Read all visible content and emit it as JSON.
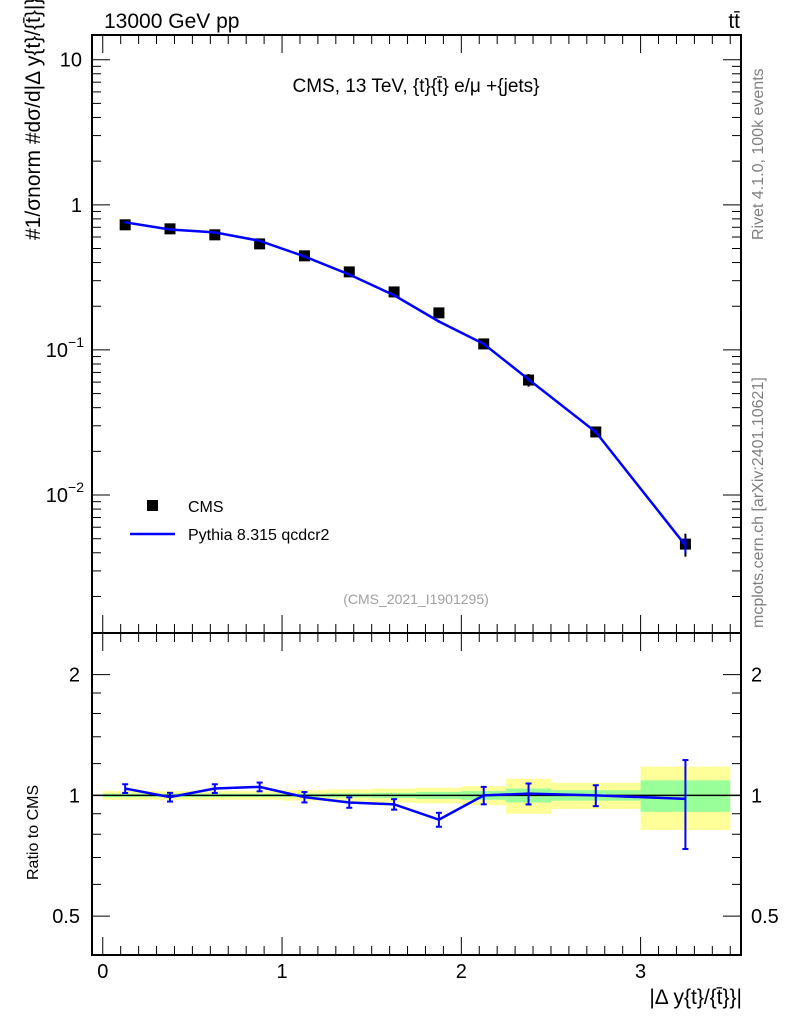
{
  "header": {
    "left": "13000 GeV pp",
    "right": "tt̄"
  },
  "side_labels": {
    "rivet": "Rivet 4.1.0,  100k events",
    "site": "mcplots.cern.ch [arXiv:2401.10621]"
  },
  "chart_data": [
    {
      "type": "scatter",
      "title": "CMS, 13 TeV, {t}{t̄} e/μ +{jets}",
      "watermark": "(CMS_2021_I1901295)",
      "ylabel": "#1/σnorm #dσ/d|Δ y{t}/{t̄}|}",
      "yscale": "log",
      "ylim": [
        0.00112,
        14.8
      ],
      "xlim": [
        -0.06,
        3.56
      ],
      "ytick_labels": [
        {
          "v": 10,
          "base": "10",
          "exp": ""
        },
        {
          "v": 1,
          "base": "1",
          "exp": ""
        },
        {
          "v": 0.1,
          "base": "10",
          "exp": "−1"
        },
        {
          "v": 0.01,
          "base": "10",
          "exp": "−2"
        }
      ],
      "legend": {
        "placement": "lower-left",
        "entries": [
          "CMS",
          "Pythia 8.315 qcdcr2"
        ]
      },
      "bins": [
        [
          0,
          0.25
        ],
        [
          0.25,
          0.5
        ],
        [
          0.5,
          0.75
        ],
        [
          0.75,
          1.0
        ],
        [
          1.0,
          1.25
        ],
        [
          1.25,
          1.5
        ],
        [
          1.5,
          1.75
        ],
        [
          1.75,
          2.0
        ],
        [
          2.0,
          2.25
        ],
        [
          2.25,
          2.5
        ],
        [
          2.5,
          3.0
        ],
        [
          3.0,
          3.5
        ]
      ],
      "x": [
        0.125,
        0.375,
        0.625,
        0.875,
        1.125,
        1.375,
        1.625,
        1.875,
        2.125,
        2.375,
        2.75,
        3.25
      ],
      "series": [
        {
          "name": "CMS",
          "values": [
            0.728,
            0.683,
            0.621,
            0.538,
            0.445,
            0.345,
            0.251,
            0.18,
            0.11,
            0.062,
            0.0272,
            0.00459
          ],
          "rel_err_stat": [
            0.01,
            0.01,
            0.01,
            0.01,
            0.01,
            0.012,
            0.015,
            0.02,
            0.025,
            0.04,
            0.03,
            0.09
          ],
          "rel_err_total": [
            0.025,
            0.025,
            0.025,
            0.025,
            0.03,
            0.035,
            0.04,
            0.045,
            0.055,
            0.1,
            0.075,
            0.18
          ]
        },
        {
          "name": "Pythia 8.315 qcdcr2",
          "values": [
            0.757,
            0.676,
            0.646,
            0.565,
            0.441,
            0.331,
            0.238,
            0.157,
            0.11,
            0.0626,
            0.0272,
            0.0045
          ],
          "rel_err": [
            0.025,
            0.025,
            0.025,
            0.025,
            0.03,
            0.03,
            0.03,
            0.04,
            0.05,
            0.06,
            0.06,
            0.25
          ]
        }
      ]
    },
    {
      "type": "line",
      "ylabel": "Ratio to CMS",
      "xlabel": "|Δ y{t}/{t̄}}|",
      "yscale": "log2",
      "ylim": [
        0.4,
        2.54
      ],
      "xlim": [
        -0.06,
        3.56
      ],
      "ytick_labels": [
        {
          "v": 2,
          "label": "2"
        },
        {
          "v": 1,
          "label": "1"
        },
        {
          "v": 0.5,
          "label": "0.5"
        }
      ],
      "xtick_labels": [
        {
          "v": 0,
          "label": "0"
        },
        {
          "v": 1,
          "label": "1"
        },
        {
          "v": 2,
          "label": "2"
        },
        {
          "v": 3,
          "label": "3"
        }
      ],
      "ratio": [
        1.04,
        0.99,
        1.04,
        1.05,
        0.99,
        0.96,
        0.95,
        0.87,
        1.0,
        1.01,
        1.0,
        0.98
      ]
    }
  ]
}
